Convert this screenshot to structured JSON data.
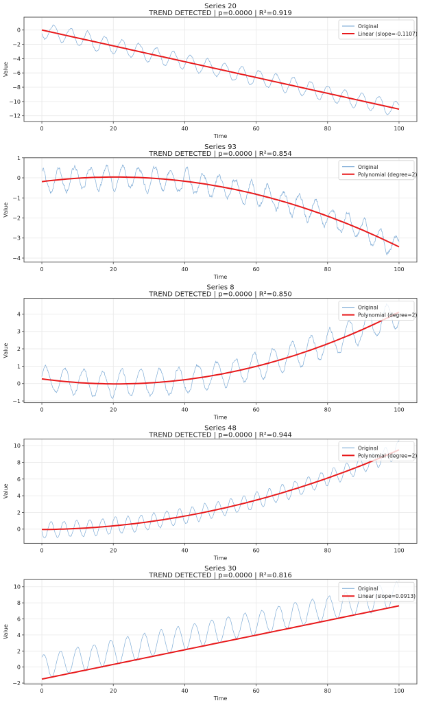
{
  "chart_data": [
    {
      "type": "line",
      "title": "Series 20",
      "subtitle": "TREND DETECTED | p=0.0000 | R²=0.919",
      "xlabel": "Time",
      "ylabel": "Value",
      "xlim": [
        -5,
        105
      ],
      "ylim": [
        -12.8,
        1.8
      ],
      "xticks": [
        0,
        20,
        40,
        60,
        80,
        100
      ],
      "yticks": [
        0,
        -2,
        -4,
        -6,
        -8,
        -10,
        -12
      ],
      "grid": true,
      "legend_position": "top-right",
      "series": [
        {
          "name": "Original",
          "kind": "noisy-sinusoid",
          "color": "#6a9fd0",
          "trend": {
            "type": "linear",
            "intercept": 0.0,
            "slope": -0.1107
          },
          "amplitude": 1.1,
          "period": 4.8,
          "phase": 3.6,
          "noise": 0.12,
          "seed": 20
        },
        {
          "name": "Linear (slope=-0.1107)",
          "kind": "fit",
          "color": "#e8191b",
          "trend": {
            "type": "linear",
            "intercept": 0.0,
            "slope": -0.1107
          }
        }
      ]
    },
    {
      "type": "line",
      "title": "Series 93",
      "subtitle": "TREND DETECTED | p=0.0000 | R²=0.854",
      "xlabel": "Time",
      "ylabel": "Value",
      "xlim": [
        -5,
        105
      ],
      "ylim": [
        -4.2,
        1.0
      ],
      "xticks": [
        0,
        20,
        40,
        60,
        80,
        100
      ],
      "yticks": [
        1,
        0,
        -1,
        -2,
        -3,
        -4
      ],
      "grid": true,
      "legend_position": "top-right",
      "series": [
        {
          "name": "Original",
          "kind": "noisy-sinusoid",
          "color": "#6a9fd0",
          "trend": {
            "type": "poly2",
            "a": -0.00055,
            "b": 0.0225,
            "c": -0.19
          },
          "amplitude": 0.55,
          "period": 4.5,
          "phase": 1.3,
          "noise": 0.12,
          "seed": 93
        },
        {
          "name": "Polynomial (degree=2)",
          "kind": "fit",
          "color": "#e8191b",
          "trend": {
            "type": "poly2",
            "a": -0.00055,
            "b": 0.0225,
            "c": -0.19
          }
        }
      ]
    },
    {
      "type": "line",
      "title": "Series 8",
      "subtitle": "TREND DETECTED | p=0.0000 | R²=0.850",
      "xlabel": "Time",
      "ylabel": "Value",
      "xlim": [
        -5,
        105
      ],
      "ylim": [
        -1.1,
        4.9
      ],
      "xticks": [
        0,
        20,
        40,
        60,
        80,
        100
      ],
      "yticks": [
        -1,
        0,
        1,
        2,
        3,
        4
      ],
      "grid": true,
      "legend_position": "top-right",
      "series": [
        {
          "name": "Original",
          "kind": "noisy-sinusoid",
          "color": "#6a9fd0",
          "trend": {
            "type": "poly2",
            "a": 0.00066,
            "b": -0.0276,
            "c": 0.27
          },
          "amplitude": 0.75,
          "period": 5.3,
          "phase": 0.2,
          "noise": 0.1,
          "seed": 8
        },
        {
          "name": "Polynomial (degree=2)",
          "kind": "fit",
          "color": "#e8191b",
          "trend": {
            "type": "poly2",
            "a": 0.00066,
            "b": -0.0276,
            "c": 0.27
          }
        }
      ]
    },
    {
      "type": "line",
      "title": "Series 48",
      "subtitle": "TREND DETECTED | p=0.0000 | R²=0.944",
      "xlabel": "Time",
      "ylabel": "Value",
      "xlim": [
        -5,
        105
      ],
      "ylim": [
        -1.7,
        10.8
      ],
      "xticks": [
        0,
        20,
        40,
        60,
        80,
        100
      ],
      "yticks": [
        0,
        2,
        4,
        6,
        8,
        10
      ],
      "grid": true,
      "legend_position": "top-right",
      "series": [
        {
          "name": "Original",
          "kind": "noisy-sinusoid",
          "color": "#6a9fd0",
          "trend": {
            "type": "poly2",
            "a": 0.00092,
            "b": 0.0035,
            "c": -0.05
          },
          "amplitude": 0.95,
          "period": 3.6,
          "phase": 3.4,
          "noise": 0.1,
          "seed": 48
        },
        {
          "name": "Polynomial (degree=2)",
          "kind": "fit",
          "color": "#e8191b",
          "trend": {
            "type": "poly2",
            "a": 0.00092,
            "b": 0.0035,
            "c": -0.05
          }
        }
      ]
    },
    {
      "type": "line",
      "title": "Series 30",
      "subtitle": "TREND DETECTED | p=0.0000 | R²=0.816",
      "xlabel": "Time",
      "ylabel": "Value",
      "xlim": [
        -5,
        105
      ],
      "ylim": [
        -2.1,
        10.9
      ],
      "xticks": [
        0,
        20,
        40,
        60,
        80,
        100
      ],
      "yticks": [
        -2,
        0,
        2,
        4,
        6,
        8,
        10
      ],
      "grid": true,
      "legend_position": "top-right",
      "series": [
        {
          "name": "Original",
          "kind": "noisy-sinusoid",
          "color": "#6a9fd0",
          "trend": {
            "type": "linear",
            "intercept": 0.0,
            "slope": 0.0913
          },
          "amplitude": 1.5,
          "period": 4.7,
          "phase": 0.9,
          "noise": 0.1,
          "seed": 30
        },
        {
          "name": "Linear (slope=0.0913)",
          "kind": "fit",
          "color": "#e8191b",
          "trend": {
            "type": "linear",
            "intercept": -1.5,
            "slope": 0.0913
          }
        }
      ]
    }
  ]
}
